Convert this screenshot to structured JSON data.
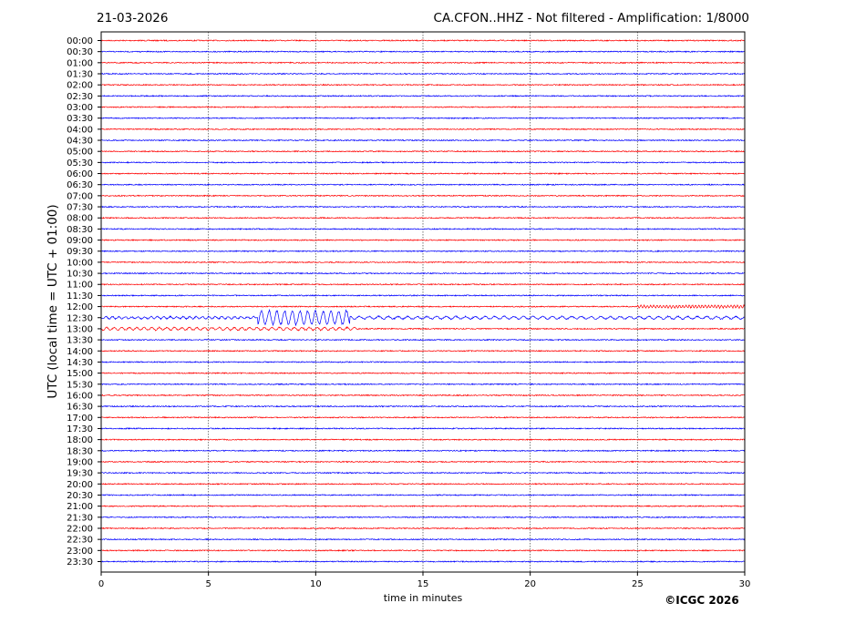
{
  "header": {
    "date": "21-03-2026",
    "title": "CA.CFON..HHZ - Not filtered - Amplification: 1/8000"
  },
  "copyright": "©ICGC 2026",
  "chart_data": {
    "type": "line",
    "title": "CA.CFON..HHZ - Not filtered - Amplification: 1/8000",
    "xlabel": "time in minutes",
    "ylabel": "UTC (local time = UTC + 01:00)",
    "xlim": [
      0,
      30
    ],
    "xticks": [
      "0",
      "5",
      "10",
      "15",
      "20",
      "25",
      "30"
    ],
    "grid": true,
    "rows": [
      "00:00",
      "00:30",
      "01:00",
      "01:30",
      "02:00",
      "02:30",
      "03:00",
      "03:30",
      "04:00",
      "04:30",
      "05:00",
      "05:30",
      "06:00",
      "06:30",
      "07:00",
      "07:30",
      "08:00",
      "08:30",
      "09:00",
      "09:30",
      "10:00",
      "10:30",
      "11:00",
      "11:30",
      "12:00",
      "12:30",
      "13:00",
      "13:30",
      "14:00",
      "14:30",
      "15:00",
      "15:30",
      "16:00",
      "16:30",
      "17:00",
      "17:30",
      "18:00",
      "18:30",
      "19:00",
      "19:30",
      "20:00",
      "20:30",
      "21:00",
      "21:30",
      "22:00",
      "22:30",
      "23:00",
      "23:30"
    ],
    "colors": [
      "#ff0000",
      "#0000ff"
    ],
    "events": [
      {
        "row": "12:00",
        "start_min": 25.0,
        "end_min": 30,
        "amplitude": 0.3,
        "period_min": 0.15
      },
      {
        "row": "12:30",
        "start_min": 0,
        "end_min": 7.2,
        "amplitude": 0.25,
        "period_min": 0.3
      },
      {
        "row": "12:30",
        "start_min": 7.3,
        "end_min": 11.6,
        "amplitude": 1.6,
        "period_min": 0.36
      },
      {
        "row": "12:30",
        "start_min": 11.6,
        "end_min": 30,
        "amplitude": 0.3,
        "period_min": 0.45
      },
      {
        "row": "13:00",
        "start_min": 0,
        "end_min": 12.0,
        "amplitude": 0.3,
        "period_min": 0.35
      }
    ]
  }
}
